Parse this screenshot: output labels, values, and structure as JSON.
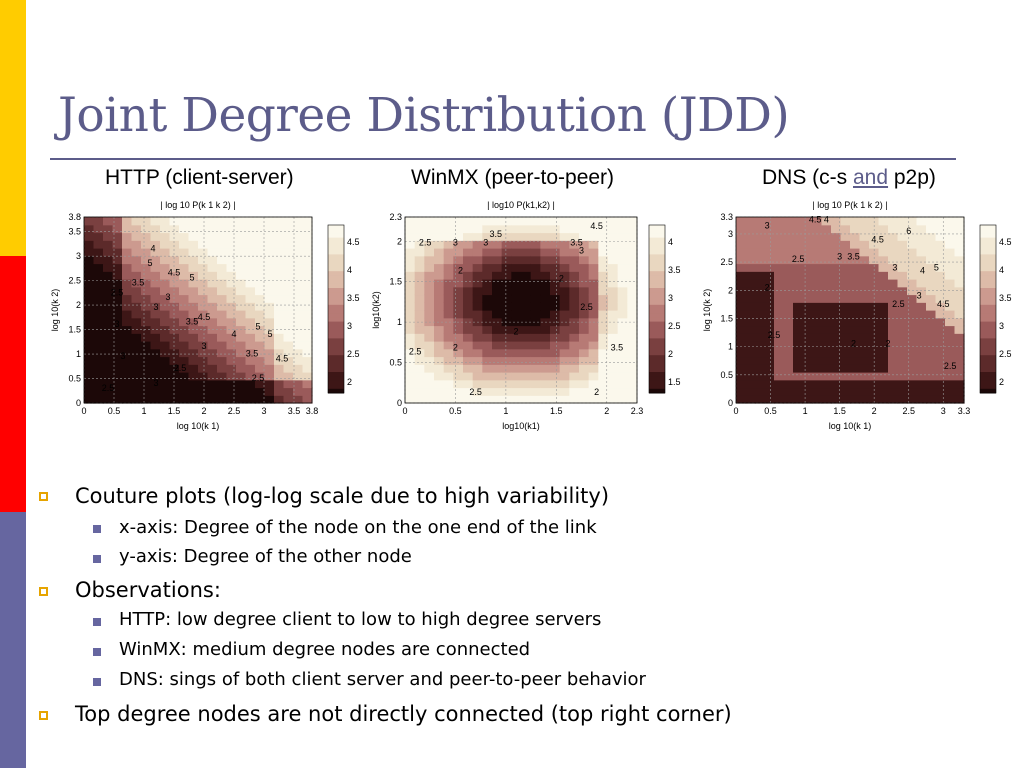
{
  "slide": {
    "title": "Joint Degree Distribution (JDD)",
    "subtitles": {
      "http": "HTTP (client-server)",
      "winmx": "WinMX (peer-to-peer)",
      "dns_pre": "DNS (c-s ",
      "dns_and": "and",
      "dns_post": " p2p)"
    },
    "colors": {
      "accent": "#5c5c8a",
      "stripe_yellow": "#ffcc00",
      "stripe_red": "#ff0000",
      "stripe_blue": "#6666a0"
    }
  },
  "bullets": [
    {
      "level": 1,
      "text": "Couture plots (log-log scale due to high variability)"
    },
    {
      "level": 2,
      "text": "x-axis: Degree of the node on the one end of the link"
    },
    {
      "level": 2,
      "text": "y-axis: Degree of the other node"
    },
    {
      "level": 1,
      "text": "Observations:"
    },
    {
      "level": 2,
      "text": "HTTP: low degree client to low to high degree servers"
    },
    {
      "level": 2,
      "text": "WinMX: medium degree nodes are connected"
    },
    {
      "level": 2,
      "text": "DNS: sings of both client server and peer-to-peer behavior"
    },
    {
      "level": 1,
      "text": "Top degree nodes are not directly connected (top right corner)"
    }
  ],
  "chart_data": [
    {
      "type": "heatmap",
      "colorbar_title": "| log 10 P(k 1 k 2) |",
      "xlabel": "log 10(k 1)",
      "ylabel": "log 10(k 2)",
      "xlim": [
        0,
        3.8
      ],
      "ylim": [
        0,
        3.8
      ],
      "xticks": [
        "0",
        "0.5",
        "1",
        "1.5",
        "2",
        "2.5",
        "3",
        "3.5",
        "3.8"
      ],
      "xtick_values": [
        0,
        0.5,
        1,
        1.5,
        2,
        2.5,
        3,
        3.5,
        3.8
      ],
      "yticks": [
        "0",
        "0.5",
        "1",
        "1.5",
        "2",
        "2.5",
        "3",
        "3.5",
        "3.8"
      ],
      "ytick_values": [
        0,
        0.5,
        1,
        1.5,
        2,
        2.5,
        3,
        3.5,
        3.8
      ],
      "colorbar_ticks": [
        "2",
        "2.5",
        "3",
        "3.5",
        "4",
        "4.5"
      ],
      "colorbar_range": [
        1.8,
        4.8
      ],
      "contour_labels": [
        {
          "text": "5",
          "x": 1.1,
          "y": 2.8
        },
        {
          "text": "4",
          "x": 1.15,
          "y": 3.1
        },
        {
          "text": "4.5",
          "x": 1.5,
          "y": 2.6
        },
        {
          "text": "5",
          "x": 1.8,
          "y": 2.5
        },
        {
          "text": "3.5",
          "x": 0.9,
          "y": 2.4
        },
        {
          "text": "3",
          "x": 1.2,
          "y": 1.9
        },
        {
          "text": "3",
          "x": 1.4,
          "y": 2.1
        },
        {
          "text": "3.5",
          "x": 1.8,
          "y": 1.6
        },
        {
          "text": "4.5",
          "x": 2.0,
          "y": 1.7
        },
        {
          "text": "4",
          "x": 2.5,
          "y": 1.35
        },
        {
          "text": "5",
          "x": 2.9,
          "y": 1.5
        },
        {
          "text": "5",
          "x": 3.1,
          "y": 1.35
        },
        {
          "text": "3",
          "x": 2.0,
          "y": 1.1
        },
        {
          "text": "3.5",
          "x": 2.8,
          "y": 0.95
        },
        {
          "text": "4.5",
          "x": 3.3,
          "y": 0.85
        },
        {
          "text": "2.5",
          "x": 0.55,
          "y": 2.2
        },
        {
          "text": "3",
          "x": 0.55,
          "y": 1.55
        },
        {
          "text": "3",
          "x": 0.65,
          "y": 0.9
        },
        {
          "text": "2.5",
          "x": 1.6,
          "y": 0.65
        },
        {
          "text": "2.5",
          "x": 0.4,
          "y": 0.25
        },
        {
          "text": "3",
          "x": 1.2,
          "y": 0.35
        },
        {
          "text": "2.5",
          "x": 2.9,
          "y": 0.45
        }
      ]
    },
    {
      "type": "heatmap",
      "colorbar_title": "| log10 P(k1,k2) |",
      "xlabel": "log10(k1)",
      "ylabel": "log10(k2)",
      "xlim": [
        0,
        2.3
      ],
      "ylim": [
        0,
        2.3
      ],
      "xticks": [
        "0",
        "0.5",
        "1",
        "1.5",
        "2",
        "2.3"
      ],
      "xtick_values": [
        0,
        0.5,
        1,
        1.5,
        2,
        2.3
      ],
      "yticks": [
        "0",
        "0.5",
        "1",
        "1.5",
        "2",
        "2.3"
      ],
      "ytick_values": [
        0,
        0.5,
        1,
        1.5,
        2,
        2.3
      ],
      "colorbar_ticks": [
        "1.5",
        "2",
        "2.5",
        "3",
        "3.5",
        "4"
      ],
      "colorbar_range": [
        1.3,
        4.3
      ],
      "contour_labels": [
        {
          "text": "3.5",
          "x": 0.9,
          "y": 2.05
        },
        {
          "text": "3",
          "x": 0.8,
          "y": 1.95
        },
        {
          "text": "2.5",
          "x": 0.2,
          "y": 1.95
        },
        {
          "text": "3",
          "x": 0.5,
          "y": 1.95
        },
        {
          "text": "4.5",
          "x": 1.9,
          "y": 2.15
        },
        {
          "text": "3.5",
          "x": 1.7,
          "y": 1.95
        },
        {
          "text": "3",
          "x": 1.75,
          "y": 1.85
        },
        {
          "text": "2",
          "x": 0.55,
          "y": 1.6
        },
        {
          "text": "2",
          "x": 1.55,
          "y": 1.5
        },
        {
          "text": "2.5",
          "x": 1.8,
          "y": 1.15
        },
        {
          "text": "2",
          "x": 0.5,
          "y": 0.65
        },
        {
          "text": "3.5",
          "x": 2.1,
          "y": 0.65
        },
        {
          "text": "2.5",
          "x": 0.1,
          "y": 0.6
        },
        {
          "text": "2",
          "x": 1.1,
          "y": 0.85
        },
        {
          "text": "2.5",
          "x": 0.7,
          "y": 0.1
        },
        {
          "text": "2",
          "x": 1.9,
          "y": 0.1
        }
      ]
    },
    {
      "type": "heatmap",
      "colorbar_title": "| log 10 P(k 1 k 2) |",
      "xlabel": "log 10(k 1)",
      "ylabel": "log 10(k 2)",
      "xlim": [
        0,
        3.3
      ],
      "ylim": [
        0,
        3.3
      ],
      "xticks": [
        "0",
        "0.5",
        "1",
        "1.5",
        "2",
        "2.5",
        "3",
        "3.3"
      ],
      "xtick_values": [
        0,
        0.5,
        1,
        1.5,
        2,
        2.5,
        3,
        3.3
      ],
      "yticks": [
        "0",
        "0.5",
        "1",
        "1.5",
        "2",
        "2.5",
        "3",
        "3.3"
      ],
      "ytick_values": [
        0,
        0.5,
        1,
        1.5,
        2,
        2.5,
        3,
        3.3
      ],
      "colorbar_ticks": [
        "2",
        "2.5",
        "3",
        "3.5",
        "4",
        "4.5"
      ],
      "colorbar_range": [
        1.8,
        4.8
      ],
      "contour_labels": [
        {
          "text": "4.5 4",
          "x": 1.2,
          "y": 3.2
        },
        {
          "text": "3",
          "x": 0.45,
          "y": 3.1
        },
        {
          "text": "4.5",
          "x": 2.05,
          "y": 2.85
        },
        {
          "text": "6",
          "x": 2.5,
          "y": 3.0
        },
        {
          "text": "3",
          "x": 1.5,
          "y": 2.55
        },
        {
          "text": "3.5",
          "x": 1.7,
          "y": 2.55
        },
        {
          "text": "5",
          "x": 2.9,
          "y": 2.35
        },
        {
          "text": "2.5",
          "x": 0.9,
          "y": 2.5
        },
        {
          "text": "2",
          "x": 0.45,
          "y": 2.0
        },
        {
          "text": "3",
          "x": 2.3,
          "y": 2.35
        },
        {
          "text": "4",
          "x": 2.7,
          "y": 2.3
        },
        {
          "text": "2.5",
          "x": 2.35,
          "y": 1.7
        },
        {
          "text": "3",
          "x": 2.65,
          "y": 1.85
        },
        {
          "text": "4.5",
          "x": 3.0,
          "y": 1.7
        },
        {
          "text": "2.5",
          "x": 0.55,
          "y": 1.15
        },
        {
          "text": "2",
          "x": 1.7,
          "y": 1.0
        },
        {
          "text": "2",
          "x": 2.2,
          "y": 1.0
        },
        {
          "text": "2.5",
          "x": 3.1,
          "y": 0.6
        }
      ]
    }
  ]
}
